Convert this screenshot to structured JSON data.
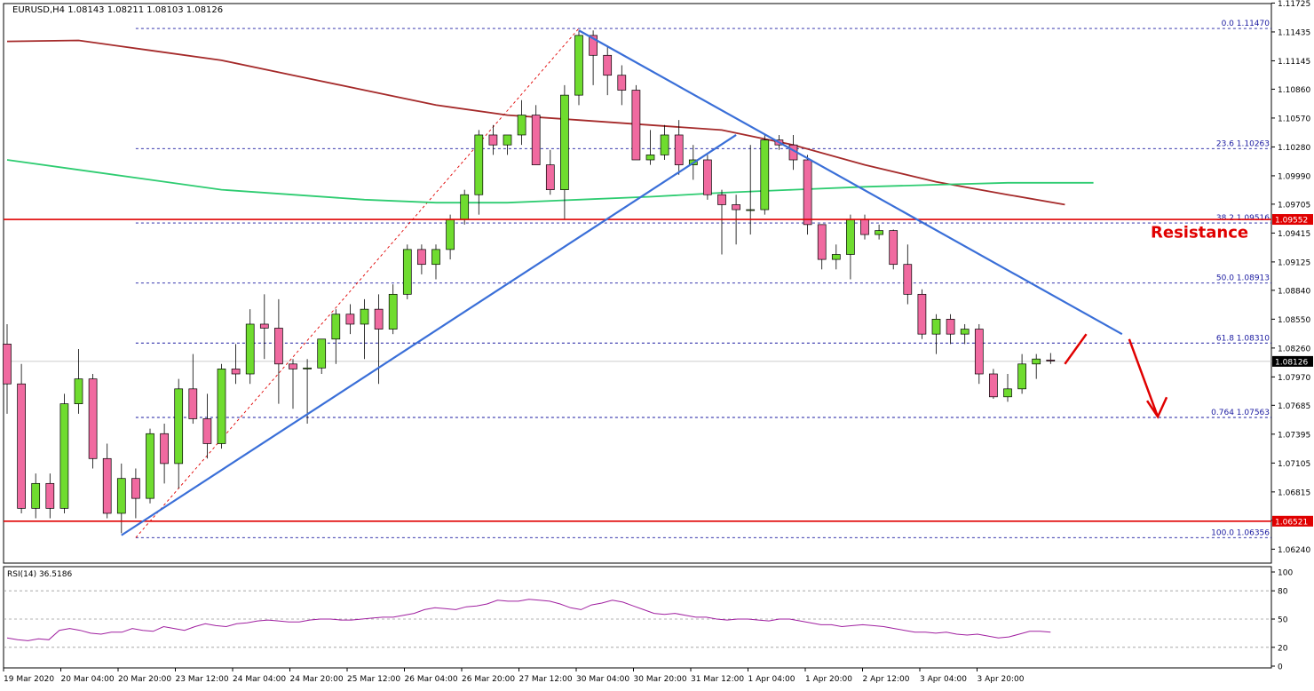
{
  "chart_data": {
    "type": "candlestick",
    "header": "EURUSD,H4  1.08143 1.08211 1.08103 1.08126",
    "price_axis": {
      "range": [
        1.061,
        1.1172
      ],
      "tick_values": [
        1.11725,
        1.11435,
        1.11145,
        1.1086,
        1.1057,
        1.1028,
        1.0999,
        1.09705,
        1.09415,
        1.09125,
        1.0884,
        1.0855,
        1.0826,
        1.0797,
        1.07685,
        1.07395,
        1.07105,
        1.06815,
        1.0653,
        1.0624
      ],
      "tick_labels": [
        "1.11725",
        "1.11435",
        "1.11145",
        "1.10860",
        "1.10570",
        "1.10280",
        "1.09990",
        "1.09705",
        "1.09415",
        "1.09125",
        "1.08840",
        "1.08550",
        "1.08260",
        "1.07970",
        "1.07685",
        "1.07395",
        "1.07105",
        "1.06815",
        "1.06530",
        "1.06240"
      ]
    },
    "time_axis_labels": [
      "19 Mar 2020",
      "20 Mar 04:00",
      "20 Mar 20:00",
      "23 Mar 12:00",
      "24 Mar 04:00",
      "24 Mar 20:00",
      "25 Mar 12:00",
      "26 Mar 04:00",
      "26 Mar 20:00",
      "27 Mar 12:00",
      "30 Mar 04:00",
      "30 Mar 20:00",
      "31 Mar 12:00",
      "1 Apr 04:00",
      "1 Apr 20:00",
      "2 Apr 12:00",
      "3 Apr 04:00",
      "3 Apr 20:00"
    ],
    "candles": [
      {
        "o": 1.083,
        "h": 1.085,
        "l": 1.076,
        "c": 1.079
      },
      {
        "o": 1.079,
        "h": 1.081,
        "l": 1.066,
        "c": 1.0665
      },
      {
        "o": 1.0665,
        "h": 1.07,
        "l": 1.0655,
        "c": 1.069
      },
      {
        "o": 1.069,
        "h": 1.07,
        "l": 1.0655,
        "c": 1.0665
      },
      {
        "o": 1.0665,
        "h": 1.078,
        "l": 1.066,
        "c": 1.077
      },
      {
        "o": 1.077,
        "h": 1.0825,
        "l": 1.076,
        "c": 1.0795
      },
      {
        "o": 1.0795,
        "h": 1.08,
        "l": 1.0705,
        "c": 1.0715
      },
      {
        "o": 1.0715,
        "h": 1.073,
        "l": 1.0655,
        "c": 1.066
      },
      {
        "o": 1.066,
        "h": 1.071,
        "l": 1.064,
        "c": 1.0695
      },
      {
        "o": 1.0695,
        "h": 1.0705,
        "l": 1.0655,
        "c": 1.0675
      },
      {
        "o": 1.0675,
        "h": 1.0745,
        "l": 1.067,
        "c": 1.074
      },
      {
        "o": 1.074,
        "h": 1.075,
        "l": 1.069,
        "c": 1.071
      },
      {
        "o": 1.071,
        "h": 1.0795,
        "l": 1.0685,
        "c": 1.0785
      },
      {
        "o": 1.0785,
        "h": 1.082,
        "l": 1.075,
        "c": 1.0755
      },
      {
        "o": 1.0755,
        "h": 1.078,
        "l": 1.0715,
        "c": 1.073
      },
      {
        "o": 1.073,
        "h": 1.081,
        "l": 1.0725,
        "c": 1.0805
      },
      {
        "o": 1.0805,
        "h": 1.083,
        "l": 1.079,
        "c": 1.08
      },
      {
        "o": 1.08,
        "h": 1.0865,
        "l": 1.079,
        "c": 1.085
      },
      {
        "o": 1.085,
        "h": 1.088,
        "l": 1.0815,
        "c": 1.0846
      },
      {
        "o": 1.0846,
        "h": 1.0875,
        "l": 1.077,
        "c": 1.081
      },
      {
        "o": 1.081,
        "h": 1.0815,
        "l": 1.0765,
        "c": 1.0805
      },
      {
        "o": 1.0805,
        "h": 1.0815,
        "l": 1.075,
        "c": 1.0806
      },
      {
        "o": 1.0806,
        "h": 1.0835,
        "l": 1.08,
        "c": 1.0835
      },
      {
        "o": 1.0835,
        "h": 1.0865,
        "l": 1.081,
        "c": 1.086
      },
      {
        "o": 1.086,
        "h": 1.087,
        "l": 1.084,
        "c": 1.085
      },
      {
        "o": 1.085,
        "h": 1.0875,
        "l": 1.0815,
        "c": 1.0865
      },
      {
        "o": 1.0865,
        "h": 1.088,
        "l": 1.079,
        "c": 1.0845
      },
      {
        "o": 1.0845,
        "h": 1.089,
        "l": 1.084,
        "c": 1.088
      },
      {
        "o": 1.088,
        "h": 1.093,
        "l": 1.0875,
        "c": 1.0925
      },
      {
        "o": 1.0925,
        "h": 1.093,
        "l": 1.09,
        "c": 1.091
      },
      {
        "o": 1.091,
        "h": 1.093,
        "l": 1.0895,
        "c": 1.0925
      },
      {
        "o": 1.0925,
        "h": 1.096,
        "l": 1.0915,
        "c": 1.0955
      },
      {
        "o": 1.0955,
        "h": 1.0985,
        "l": 1.095,
        "c": 1.098
      },
      {
        "o": 1.098,
        "h": 1.1045,
        "l": 1.096,
        "c": 1.104
      },
      {
        "o": 1.104,
        "h": 1.105,
        "l": 1.102,
        "c": 1.103
      },
      {
        "o": 1.103,
        "h": 1.104,
        "l": 1.102,
        "c": 1.104
      },
      {
        "o": 1.104,
        "h": 1.1075,
        "l": 1.103,
        "c": 1.106
      },
      {
        "o": 1.106,
        "h": 1.107,
        "l": 1.101,
        "c": 1.101
      },
      {
        "o": 1.101,
        "h": 1.1025,
        "l": 1.098,
        "c": 1.0985
      },
      {
        "o": 1.0985,
        "h": 1.109,
        "l": 1.0955,
        "c": 1.108
      },
      {
        "o": 1.108,
        "h": 1.1145,
        "l": 1.107,
        "c": 1.114
      },
      {
        "o": 1.114,
        "h": 1.1145,
        "l": 1.109,
        "c": 1.112
      },
      {
        "o": 1.112,
        "h": 1.113,
        "l": 1.108,
        "c": 1.11
      },
      {
        "o": 1.11,
        "h": 1.111,
        "l": 1.107,
        "c": 1.1085
      },
      {
        "o": 1.1085,
        "h": 1.109,
        "l": 1.1015,
        "c": 1.1015
      },
      {
        "o": 1.1015,
        "h": 1.1045,
        "l": 1.101,
        "c": 1.102
      },
      {
        "o": 1.102,
        "h": 1.105,
        "l": 1.1015,
        "c": 1.104
      },
      {
        "o": 1.104,
        "h": 1.1055,
        "l": 1.1,
        "c": 1.101
      },
      {
        "o": 1.101,
        "h": 1.103,
        "l": 1.0995,
        "c": 1.1015
      },
      {
        "o": 1.1015,
        "h": 1.102,
        "l": 1.0975,
        "c": 1.098
      },
      {
        "o": 1.098,
        "h": 1.0985,
        "l": 1.092,
        "c": 1.097
      },
      {
        "o": 1.097,
        "h": 1.098,
        "l": 1.093,
        "c": 1.0965
      },
      {
        "o": 1.0965,
        "h": 1.103,
        "l": 1.094,
        "c": 1.0965
      },
      {
        "o": 1.0965,
        "h": 1.104,
        "l": 1.096,
        "c": 1.1035
      },
      {
        "o": 1.1035,
        "h": 1.104,
        "l": 1.1025,
        "c": 1.103
      },
      {
        "o": 1.103,
        "h": 1.104,
        "l": 1.1005,
        "c": 1.1015
      },
      {
        "o": 1.1015,
        "h": 1.102,
        "l": 1.094,
        "c": 1.095
      },
      {
        "o": 1.095,
        "h": 1.095,
        "l": 1.0905,
        "c": 1.0915
      },
      {
        "o": 1.0915,
        "h": 1.093,
        "l": 1.0905,
        "c": 1.092
      },
      {
        "o": 1.092,
        "h": 1.096,
        "l": 1.0895,
        "c": 1.0955
      },
      {
        "o": 1.0955,
        "h": 1.096,
        "l": 1.0935,
        "c": 1.094
      },
      {
        "o": 1.094,
        "h": 1.095,
        "l": 1.0935,
        "c": 1.0944
      },
      {
        "o": 1.0944,
        "h": 1.0945,
        "l": 1.0905,
        "c": 1.091
      },
      {
        "o": 1.091,
        "h": 1.093,
        "l": 1.087,
        "c": 1.088
      },
      {
        "o": 1.088,
        "h": 1.0885,
        "l": 1.0835,
        "c": 1.084
      },
      {
        "o": 1.084,
        "h": 1.086,
        "l": 1.082,
        "c": 1.0855
      },
      {
        "o": 1.0855,
        "h": 1.086,
        "l": 1.083,
        "c": 1.084
      },
      {
        "o": 1.084,
        "h": 1.085,
        "l": 1.083,
        "c": 1.0845
      },
      {
        "o": 1.0845,
        "h": 1.085,
        "l": 1.079,
        "c": 1.08
      },
      {
        "o": 1.08,
        "h": 1.0805,
        "l": 1.0775,
        "c": 1.0777
      },
      {
        "o": 1.0777,
        "h": 1.08,
        "l": 1.0772,
        "c": 1.0785
      },
      {
        "o": 1.0785,
        "h": 1.082,
        "l": 1.078,
        "c": 1.081
      },
      {
        "o": 1.081,
        "h": 1.082,
        "l": 1.0795,
        "c": 1.0815
      },
      {
        "o": 1.0814,
        "h": 1.0821,
        "l": 1.081,
        "c": 1.0813
      }
    ],
    "ma_slow": {
      "color": "#a52a2a",
      "points": [
        [
          0,
          1.1134
        ],
        [
          5,
          1.1135
        ],
        [
          10,
          1.1125
        ],
        [
          15,
          1.1115
        ],
        [
          20,
          1.11
        ],
        [
          25,
          1.1085
        ],
        [
          30,
          1.107
        ],
        [
          35,
          1.106
        ],
        [
          40,
          1.1055
        ],
        [
          45,
          1.105
        ],
        [
          50,
          1.1045
        ],
        [
          55,
          1.103
        ],
        [
          60,
          1.101
        ],
        [
          65,
          1.0993
        ],
        [
          70,
          1.098
        ],
        [
          74,
          1.097
        ]
      ]
    },
    "ma_fast": {
      "color": "#2ecc71",
      "points": [
        [
          0,
          1.1015
        ],
        [
          5,
          1.1005
        ],
        [
          10,
          1.0995
        ],
        [
          15,
          1.0985
        ],
        [
          20,
          1.098
        ],
        [
          25,
          1.0975
        ],
        [
          30,
          1.0972
        ],
        [
          35,
          1.0972
        ],
        [
          40,
          1.0975
        ],
        [
          45,
          1.0978
        ],
        [
          50,
          1.0982
        ],
        [
          55,
          1.0985
        ],
        [
          60,
          1.0988
        ],
        [
          65,
          1.099
        ],
        [
          70,
          1.0992
        ],
        [
          76,
          1.0992
        ]
      ]
    },
    "horizontal_levels": [
      {
        "price": 1.09552,
        "color": "#e00000",
        "label": "1.09552"
      },
      {
        "price": 1.06521,
        "color": "#e00000",
        "label": "1.06521"
      }
    ],
    "current_price": {
      "price": 1.08126,
      "label": "1.08126"
    },
    "fib_levels": [
      {
        "price": 1.1147,
        "label": "0.0 1.11470"
      },
      {
        "price": 1.10263,
        "label": "23.6 1.10263"
      },
      {
        "price": 1.09516,
        "label": "38.2 1.09516"
      },
      {
        "price": 1.08913,
        "label": "50.0 1.08913"
      },
      {
        "price": 1.0831,
        "label": "61.8 1.08310"
      },
      {
        "price": 1.07563,
        "label": "0.764 1.07563"
      },
      {
        "price": 1.06356,
        "label": "100.0 1.06356"
      }
    ],
    "fib_anchor": {
      "low_index": 9,
      "low_price": 1.06356,
      "high_index": 40,
      "high_price": 1.1147
    },
    "trendlines": [
      {
        "from": [
          8,
          1.0638
        ],
        "to": [
          51,
          1.104
        ],
        "color": "#3a6fd8"
      },
      {
        "from": [
          40,
          1.1145
        ],
        "to": [
          78,
          1.084
        ],
        "color": "#3a6fd8"
      }
    ],
    "annotation": {
      "text": "Resistance",
      "color": "#e00000",
      "price": 1.0937,
      "index": 80
    },
    "forecast_path": {
      "color": "#e00000",
      "points": [
        [
          74,
          1.081
        ],
        [
          75.5,
          1.084
        ]
      ],
      "arrow_from": [
        78.5,
        1.0835
      ],
      "arrow_to": [
        80.5,
        1.0757
      ]
    },
    "rsi": {
      "label": "RSI(14) 36.5186",
      "tick_labels": [
        "100",
        "80",
        "50",
        "20",
        "0"
      ],
      "tick_values": [
        100,
        80,
        50,
        20,
        0
      ],
      "levels": [
        80,
        50,
        20
      ],
      "color": "#a020a0",
      "values": [
        30,
        28,
        27,
        29,
        28,
        38,
        40,
        38,
        35,
        34,
        36,
        36,
        40,
        38,
        37,
        42,
        40,
        38,
        42,
        45,
        43,
        42,
        45,
        46,
        48,
        49,
        48,
        47,
        47,
        49,
        50,
        50,
        49,
        49,
        50,
        51,
        52,
        52,
        54,
        56,
        60,
        62,
        61,
        60,
        63,
        64,
        66,
        70,
        69,
        69,
        71,
        70,
        69,
        66,
        62,
        60,
        65,
        67,
        70,
        68,
        64,
        60,
        56,
        55,
        56,
        54,
        52,
        52,
        50,
        49,
        50,
        50,
        49,
        48,
        50,
        50,
        48,
        46,
        44,
        44,
        42,
        43,
        44,
        43,
        42,
        40,
        38,
        36,
        36,
        35,
        36,
        34,
        33,
        34,
        32,
        30,
        31,
        34,
        37,
        37,
        36
      ]
    }
  }
}
